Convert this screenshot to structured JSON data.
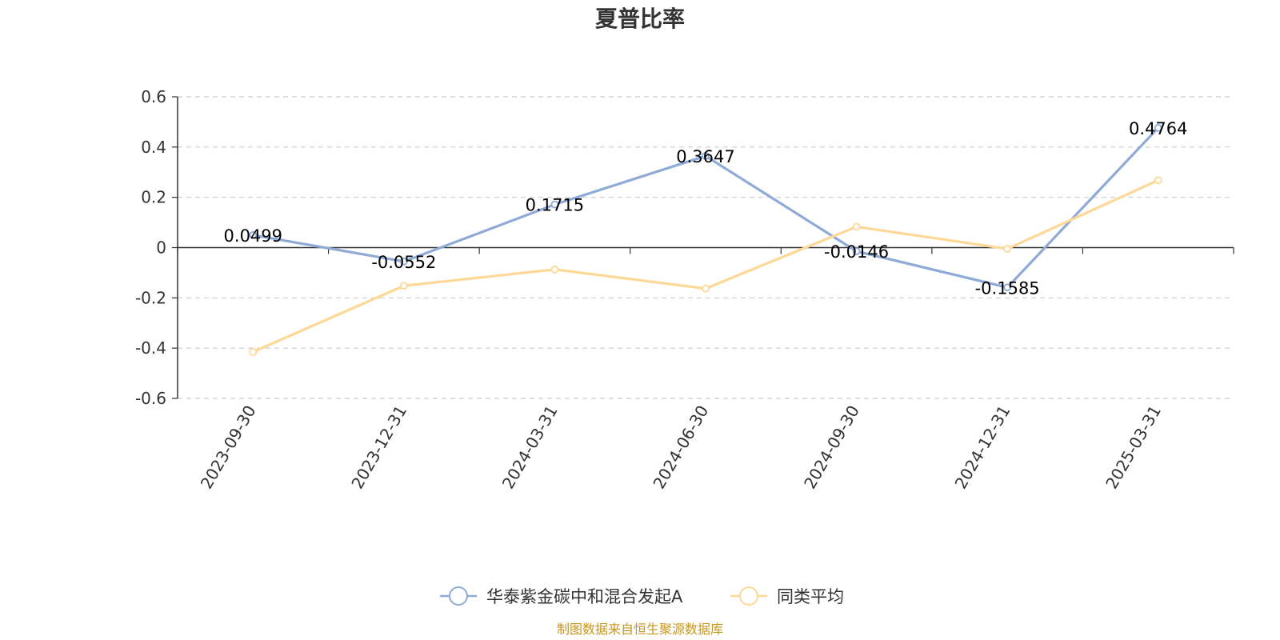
{
  "chart_data": {
    "type": "line",
    "title": "夏普比率",
    "categories": [
      "2023-09-30",
      "2023-12-31",
      "2024-03-31",
      "2024-06-30",
      "2024-09-30",
      "2024-12-31",
      "2025-03-31"
    ],
    "series": [
      {
        "name": "华泰紫金碳中和混合发起A",
        "color": "#8eaad6",
        "values": [
          0.0499,
          -0.0552,
          0.1715,
          0.3647,
          -0.0146,
          -0.1585,
          0.4764
        ],
        "labels": [
          "0.0499",
          "-0.0552",
          "0.1715",
          "0.3647",
          "-0.0146",
          "-0.1585",
          "0.4764"
        ]
      },
      {
        "name": "同类平均",
        "color": "#fdd896",
        "values": [
          -0.415,
          -0.152,
          -0.087,
          -0.163,
          0.083,
          -0.005,
          0.268
        ]
      }
    ],
    "ylim": [
      -0.6,
      0.6
    ],
    "yticks": [
      0.6,
      0.4,
      0.2,
      0,
      -0.2,
      -0.4,
      -0.6
    ],
    "ytick_labels": [
      "0.6",
      "0.4",
      "0.2",
      "0",
      "-0.2",
      "-0.4",
      "-0.6"
    ],
    "grid": true,
    "legend_position": "bottom",
    "source": "制图数据来自恒生聚源数据库"
  }
}
